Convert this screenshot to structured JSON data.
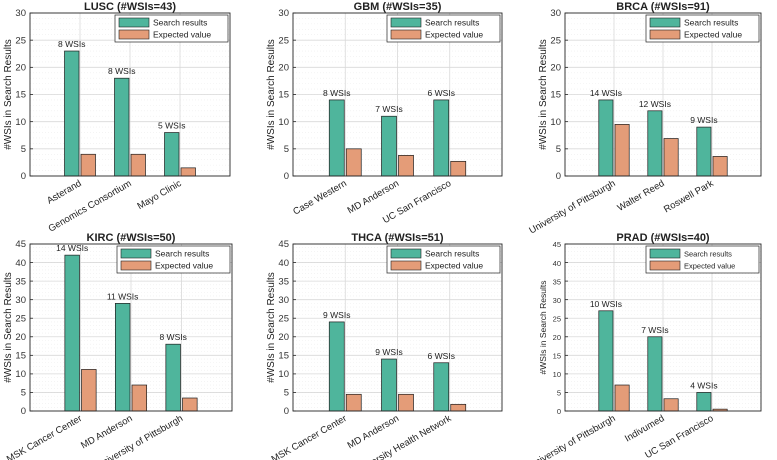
{
  "colors": {
    "search": "#4fb59c",
    "expected": "#e49c78",
    "axis": "#262626",
    "grid": "#d9d9d9",
    "minor_grid": "#eeeeee"
  },
  "chart_data": [
    {
      "type": "bar",
      "title": "LUSC (#WSIs=43)",
      "categories": [
        "Asterand",
        "Genomics Consortium",
        "Mayo Clinic"
      ],
      "series": [
        {
          "name": "Search results",
          "values": [
            23,
            18,
            8
          ]
        },
        {
          "name": "Expected value",
          "values": [
            4.0,
            4.0,
            1.5
          ]
        }
      ],
      "data_labels": [
        "8 WSIs",
        "8 WSIs",
        "5 WSIs"
      ],
      "ylabel": "#WSIs in Search Results",
      "ylim": [
        0,
        30
      ],
      "yticks": [
        0,
        5,
        10,
        15,
        20,
        25,
        30
      ],
      "grid": true,
      "legend": "top-right"
    },
    {
      "type": "bar",
      "title": "GBM (#WSIs=35)",
      "categories": [
        "Case Western",
        "MD Anderson",
        "UC San Francisco"
      ],
      "series": [
        {
          "name": "Search results",
          "values": [
            14,
            11,
            14
          ]
        },
        {
          "name": "Expected value",
          "values": [
            5.0,
            3.8,
            2.7
          ]
        }
      ],
      "data_labels": [
        "8 WSIs",
        "7 WSIs",
        "6 WSIs"
      ],
      "ylabel": "#WSIs in Search Results",
      "ylim": [
        0,
        30
      ],
      "yticks": [
        0,
        5,
        10,
        15,
        20,
        25,
        30
      ],
      "grid": true,
      "legend": "top-right"
    },
    {
      "type": "bar",
      "title": "BRCA (#WSIs=91)",
      "categories": [
        "University of Pittsburgh",
        "Walter Reed",
        "Roswell Park"
      ],
      "series": [
        {
          "name": "Search results",
          "values": [
            14,
            12,
            9
          ]
        },
        {
          "name": "Expected value",
          "values": [
            9.5,
            6.9,
            3.6
          ]
        }
      ],
      "data_labels": [
        "14 WSIs",
        "12 WSIs",
        "9 WSIs"
      ],
      "ylabel": "#WSIs in Search Results",
      "ylim": [
        0,
        30
      ],
      "yticks": [
        0,
        5,
        10,
        15,
        20,
        25,
        30
      ],
      "grid": true,
      "legend": "top-right"
    },
    {
      "type": "bar",
      "title": "KIRC (#WSIs=50)",
      "categories": [
        "MSK Cancer Center",
        "MD Anderson",
        "University of Pittsburgh"
      ],
      "series": [
        {
          "name": "Search results",
          "values": [
            42,
            29,
            18
          ]
        },
        {
          "name": "Expected value",
          "values": [
            11.2,
            7.0,
            3.5
          ]
        }
      ],
      "data_labels": [
        "14 WSIs",
        "11 WSIs",
        "8 WSIs"
      ],
      "ylabel": "#WSIs in Search Results",
      "ylim": [
        0,
        45
      ],
      "yticks": [
        0,
        5,
        10,
        15,
        20,
        25,
        30,
        35,
        40,
        45
      ],
      "grid": true,
      "legend": "top-right"
    },
    {
      "type": "bar",
      "title": "THCA (#WSIs=51)",
      "categories": [
        "MSK Cancer Center",
        "MD Anderson",
        "University Health Network"
      ],
      "series": [
        {
          "name": "Search results",
          "values": [
            24,
            14,
            13
          ]
        },
        {
          "name": "Expected value",
          "values": [
            4.5,
            4.5,
            1.8
          ]
        }
      ],
      "data_labels": [
        "9 WSIs",
        "9 WSIs",
        "6 WSIs"
      ],
      "ylabel": "#WSIs in Search Results",
      "ylim": [
        0,
        45
      ],
      "yticks": [
        0,
        5,
        10,
        15,
        20,
        25,
        30,
        35,
        40,
        45
      ],
      "grid": true,
      "legend": "top-right"
    },
    {
      "type": "bar",
      "title": "PRAD (#WSIs=40)",
      "categories": [
        "University of Pittsburgh",
        "Indivumed",
        "UC San Francisco"
      ],
      "series": [
        {
          "name": "Search results",
          "values": [
            27,
            20,
            5
          ]
        },
        {
          "name": "Expected value",
          "values": [
            7.0,
            3.3,
            0.5
          ]
        }
      ],
      "data_labels": [
        "10 WSIs",
        "7 WSIs",
        "4 WSIs"
      ],
      "ylabel": "#WSIs in Search Results",
      "ylim": [
        0,
        45
      ],
      "yticks": [
        0,
        5,
        10,
        15,
        20,
        25,
        30,
        35,
        40,
        45
      ],
      "grid": true,
      "legend": "top-right"
    }
  ]
}
